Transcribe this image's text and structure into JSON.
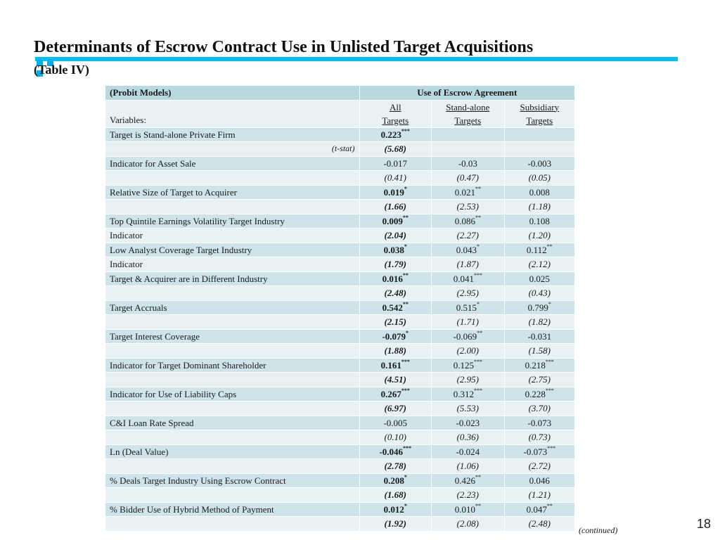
{
  "slide": {
    "title": "Determinants of Escrow Contract Use in Unlisted Target Acquisitions",
    "subtitle": "(Table IV)",
    "continued": "(continued)",
    "page_number": "18",
    "accent_color": "#00c0f0"
  },
  "table": {
    "header_left": "(Probit Models)",
    "header_group": "Use of Escrow Agreement",
    "variables_label": "Variables:",
    "columns": [
      {
        "line1": "All",
        "line2": "Targets"
      },
      {
        "line1": "Stand-alone",
        "line2": "Targets"
      },
      {
        "line1": "Subsidiary",
        "line2": "Targets"
      }
    ],
    "rows": [
      {
        "label": "Target is Stand-alone Private Firm",
        "label_style": "",
        "cells": [
          {
            "v": "0.223",
            "s": "***",
            "b": true
          },
          {
            "v": "",
            "s": ""
          },
          {
            "v": "",
            "s": ""
          }
        ]
      },
      {
        "label": "(t-stat)",
        "label_style": "right-italic",
        "italic": true,
        "cells": [
          {
            "v": "(5.68)",
            "s": "",
            "b": true
          },
          {
            "v": "",
            "s": ""
          },
          {
            "v": "",
            "s": ""
          }
        ]
      },
      {
        "label": "Indicator for Asset Sale",
        "label_style": "",
        "cells": [
          {
            "v": "-0.017",
            "s": ""
          },
          {
            "v": "-0.03",
            "s": ""
          },
          {
            "v": "-0.003",
            "s": ""
          }
        ]
      },
      {
        "label": "",
        "label_style": "",
        "italic": true,
        "cells": [
          {
            "v": "(0.41)",
            "s": ""
          },
          {
            "v": "(0.47)",
            "s": ""
          },
          {
            "v": "(0.05)",
            "s": ""
          }
        ]
      },
      {
        "label": "Relative Size of Target to Acquirer",
        "label_style": "",
        "cells": [
          {
            "v": "0.019",
            "s": "*",
            "b": true
          },
          {
            "v": "0.021",
            "s": "**"
          },
          {
            "v": "0.008",
            "s": ""
          }
        ]
      },
      {
        "label": "",
        "label_style": "",
        "italic": true,
        "cells": [
          {
            "v": "(1.66)",
            "s": "",
            "b": true
          },
          {
            "v": "(2.53)",
            "s": ""
          },
          {
            "v": "(1.18)",
            "s": ""
          }
        ]
      },
      {
        "label": "Top Quintile Earnings Volatility Target Industry",
        "label_style": "",
        "cells": [
          {
            "v": "0.009",
            "s": "**",
            "b": true
          },
          {
            "v": "0.086",
            "s": "**"
          },
          {
            "v": "0.108",
            "s": ""
          }
        ]
      },
      {
        "label": "Indicator",
        "label_style": "",
        "italic": true,
        "cells": [
          {
            "v": "(2.04)",
            "s": "",
            "b": true
          },
          {
            "v": "(2.27)",
            "s": ""
          },
          {
            "v": "(1.20)",
            "s": ""
          }
        ]
      },
      {
        "label": "Low Analyst Coverage Target Industry",
        "label_style": "",
        "cells": [
          {
            "v": "0.038",
            "s": "*",
            "b": true
          },
          {
            "v": "0.043",
            "s": "*"
          },
          {
            "v": "0.112",
            "s": "**"
          }
        ]
      },
      {
        "label": "Indicator",
        "label_style": "",
        "italic": true,
        "cells": [
          {
            "v": "(1.79)",
            "s": "",
            "b": true
          },
          {
            "v": "(1.87)",
            "s": ""
          },
          {
            "v": "(2.12)",
            "s": ""
          }
        ]
      },
      {
        "label": "Target & Acquirer are in Different Industry",
        "label_style": "",
        "cells": [
          {
            "v": "0.016",
            "s": "**",
            "b": true
          },
          {
            "v": "0.041",
            "s": "***"
          },
          {
            "v": "0.025",
            "s": ""
          }
        ]
      },
      {
        "label": "",
        "label_style": "",
        "italic": true,
        "cells": [
          {
            "v": "(2.48)",
            "s": "",
            "b": true
          },
          {
            "v": "(2.95)",
            "s": ""
          },
          {
            "v": "(0.43)",
            "s": ""
          }
        ]
      },
      {
        "label": "Target Accruals",
        "label_style": "",
        "cells": [
          {
            "v": "0.542",
            "s": "**",
            "b": true
          },
          {
            "v": "0.515",
            "s": "*"
          },
          {
            "v": "0.799",
            "s": "*"
          }
        ]
      },
      {
        "label": "",
        "label_style": "",
        "italic": true,
        "cells": [
          {
            "v": "(2.15)",
            "s": "",
            "b": true
          },
          {
            "v": "(1.71)",
            "s": ""
          },
          {
            "v": "(1.82)",
            "s": ""
          }
        ]
      },
      {
        "label": "Target Interest Coverage",
        "label_style": "",
        "cells": [
          {
            "v": "-0.079",
            "s": "*",
            "b": true
          },
          {
            "v": "-0.069",
            "s": "**"
          },
          {
            "v": "-0.031",
            "s": ""
          }
        ]
      },
      {
        "label": "",
        "label_style": "",
        "italic": true,
        "cells": [
          {
            "v": "(1.88)",
            "s": "",
            "b": true
          },
          {
            "v": "(2.00)",
            "s": ""
          },
          {
            "v": "(1.58)",
            "s": ""
          }
        ]
      },
      {
        "label": "Indicator for Target Dominant Shareholder",
        "label_style": "",
        "cells": [
          {
            "v": "0.161",
            "s": "***",
            "b": true
          },
          {
            "v": "0.125",
            "s": "***"
          },
          {
            "v": "0.218",
            "s": "***"
          }
        ]
      },
      {
        "label": "",
        "label_style": "",
        "italic": true,
        "cells": [
          {
            "v": "(4.51)",
            "s": "",
            "b": true
          },
          {
            "v": "(2.95)",
            "s": ""
          },
          {
            "v": "(2.75)",
            "s": ""
          }
        ]
      },
      {
        "label": "Indicator for Use of Liability Caps",
        "label_style": "",
        "cells": [
          {
            "v": "0.267",
            "s": "***",
            "b": true
          },
          {
            "v": "0.312",
            "s": "***"
          },
          {
            "v": "0.228",
            "s": "***"
          }
        ]
      },
      {
        "label": "",
        "label_style": "",
        "italic": true,
        "cells": [
          {
            "v": "(6.97)",
            "s": "",
            "b": true
          },
          {
            "v": "(5.53)",
            "s": ""
          },
          {
            "v": "(3.70)",
            "s": ""
          }
        ]
      },
      {
        "label": "C&I Loan Rate Spread",
        "label_style": "",
        "cells": [
          {
            "v": "-0.005",
            "s": ""
          },
          {
            "v": "-0.023",
            "s": ""
          },
          {
            "v": "-0.073",
            "s": ""
          }
        ]
      },
      {
        "label": "",
        "label_style": "",
        "italic": true,
        "cells": [
          {
            "v": "(0.10)",
            "s": ""
          },
          {
            "v": "(0.36)",
            "s": ""
          },
          {
            "v": "(0.73)",
            "s": ""
          }
        ]
      },
      {
        "label": "Ln (Deal Value)",
        "label_style": "",
        "cells": [
          {
            "v": "-0.046",
            "s": "***",
            "b": true
          },
          {
            "v": "-0.024",
            "s": ""
          },
          {
            "v": "-0.073",
            "s": "***"
          }
        ]
      },
      {
        "label": "",
        "label_style": "",
        "italic": true,
        "cells": [
          {
            "v": "(2.78)",
            "s": "",
            "b": true
          },
          {
            "v": "(1.06)",
            "s": ""
          },
          {
            "v": "(2.72)",
            "s": ""
          }
        ]
      },
      {
        "label": "% Deals Target Industry Using Escrow Contract",
        "label_style": "",
        "cells": [
          {
            "v": "0.208",
            "s": "*",
            "b": true
          },
          {
            "v": "0.426",
            "s": "**"
          },
          {
            "v": "0.046",
            "s": ""
          }
        ]
      },
      {
        "label": "",
        "label_style": "",
        "italic": true,
        "cells": [
          {
            "v": "(1.68)",
            "s": "",
            "b": true
          },
          {
            "v": "(2.23)",
            "s": ""
          },
          {
            "v": "(1.21)",
            "s": ""
          }
        ]
      },
      {
        "label": "% Bidder Use of Hybrid Method of Payment",
        "label_style": "",
        "cells": [
          {
            "v": "0.012",
            "s": "*",
            "b": true
          },
          {
            "v": "0.010",
            "s": "**"
          },
          {
            "v": "0.047",
            "s": "**"
          }
        ]
      },
      {
        "label": "",
        "label_style": "",
        "italic": true,
        "cells": [
          {
            "v": "(1.92)",
            "s": "",
            "b": true
          },
          {
            "v": "(2.08)",
            "s": ""
          },
          {
            "v": "(2.48)",
            "s": ""
          }
        ]
      }
    ]
  }
}
